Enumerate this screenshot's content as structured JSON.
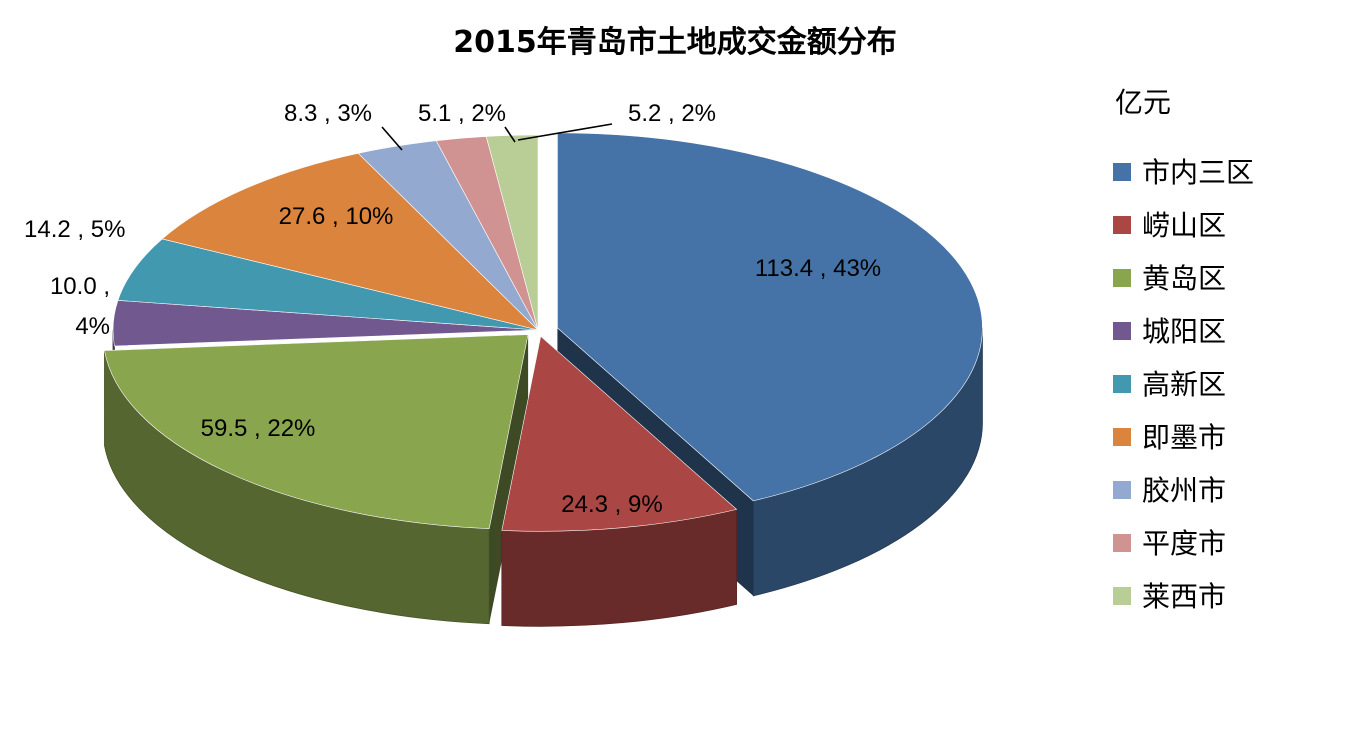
{
  "chart_data": {
    "type": "pie",
    "title": "2015年青岛市土地成交金额分布",
    "unit": "亿元",
    "legend_position": "right",
    "slices": [
      {
        "name": "市内三区",
        "value": 113.4,
        "percent": "43%",
        "label": "113.4 , 43%",
        "color": "#4572A7"
      },
      {
        "name": "崂山区",
        "value": 24.3,
        "percent": "9%",
        "label": "24.3 , 9%",
        "color": "#AA4643"
      },
      {
        "name": "黄岛区",
        "value": 59.5,
        "percent": "22%",
        "label": "59.5 , 22%",
        "color": "#89A54E"
      },
      {
        "name": "城阳区",
        "value": 10.0,
        "percent": "4%",
        "label": "10.0 , 4%",
        "label_lines": [
          "10.0 ,",
          "4%"
        ],
        "color": "#71588F"
      },
      {
        "name": "高新区",
        "value": 14.2,
        "percent": "5%",
        "label": "14.2 , 5%",
        "color": "#4198AF"
      },
      {
        "name": "即墨市",
        "value": 27.6,
        "percent": "10%",
        "label": "27.6 , 10%",
        "color": "#DB843D"
      },
      {
        "name": "胶州市",
        "value": 8.3,
        "percent": "3%",
        "label": "8.3 , 3%",
        "color": "#93A9CF"
      },
      {
        "name": "平度市",
        "value": 5.1,
        "percent": "2%",
        "label": "5.1 , 2%",
        "color": "#D19392"
      },
      {
        "name": "莱西市",
        "value": 5.2,
        "percent": "2%",
        "label": "5.2 , 2%",
        "color": "#B9CD96"
      }
    ]
  }
}
